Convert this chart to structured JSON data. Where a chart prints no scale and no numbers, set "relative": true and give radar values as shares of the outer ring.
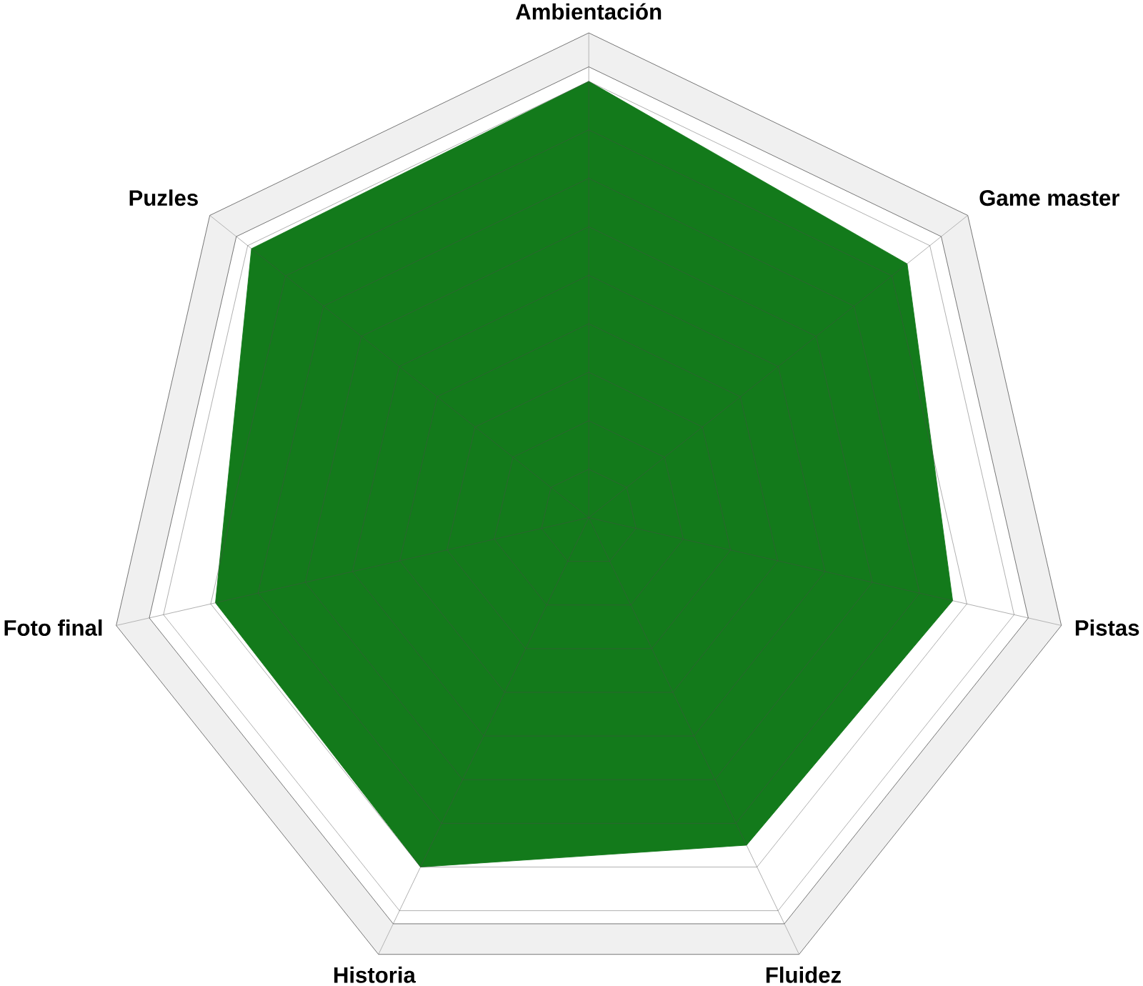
{
  "chart_data": {
    "type": "radar",
    "relative": true,
    "grid": true,
    "categories": [
      "Ambientación",
      "Game master",
      "Pistas",
      "Fluidez",
      "Historia",
      "Foto final",
      "Puzles"
    ],
    "series": [
      {
        "color": "#137a1b",
        "values": [
          0.9,
          0.84,
          0.77,
          0.75,
          0.8,
          0.79,
          0.89
        ]
      }
    ]
  }
}
